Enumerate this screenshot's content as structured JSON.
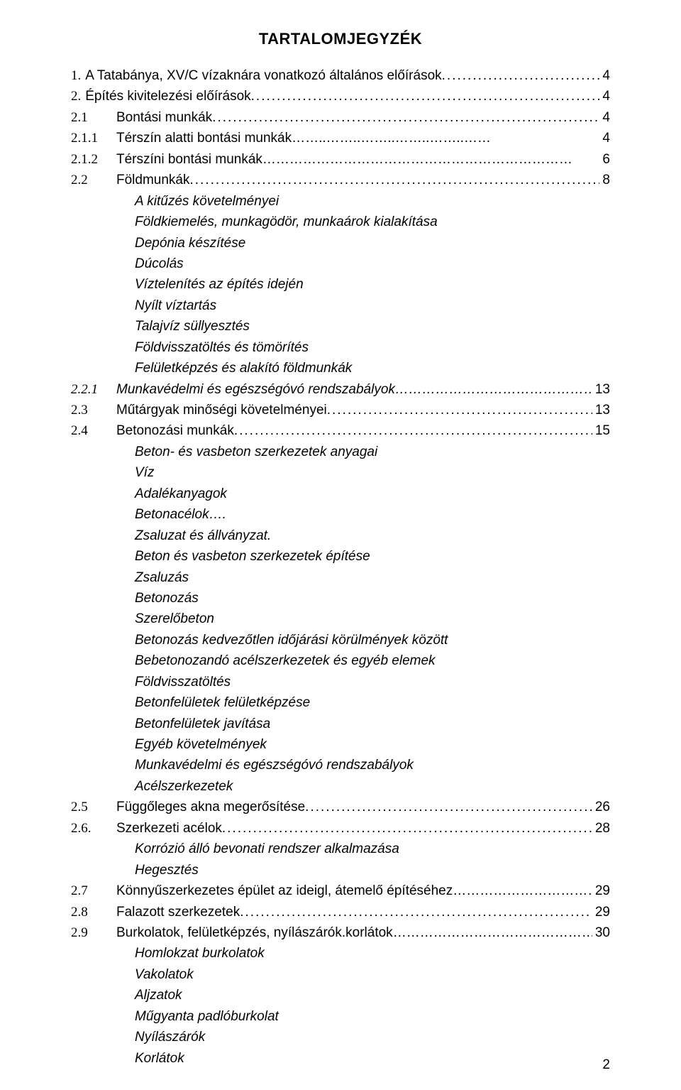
{
  "title": "TARTALOMJEGYZÉK",
  "page_number": "2",
  "dots_long": "...................................................................................................................",
  "dots_med": "……………………………………………………………",
  "dots_dash": "……..……..……..……..……..……",
  "entries": {
    "e1": {
      "num": "1.",
      "label": "A Tatabánya, XV/C vízaknára vonatkozó általános előírások",
      "page": "4"
    },
    "e2": {
      "num": "2.",
      "label": "Építés kivitelezési előírások",
      "page": "4"
    },
    "e21": {
      "num": "2.1",
      "label": "Bontási munkák",
      "page": "4"
    },
    "e211": {
      "num": "2.1.1",
      "label": "Térszín alatti bontási munkák",
      "page": "4"
    },
    "e212": {
      "num": "2.1.2",
      "label": "Térszíni bontási munkák",
      "page": "6"
    },
    "e22": {
      "num": "2.2",
      "label": "Földmunkák",
      "page": "8"
    },
    "e221": {
      "num": "2.2.1",
      "label": "Munkavédelmi és egészségóvó rendszabályok",
      "page": "13"
    },
    "e23": {
      "num": "2.3",
      "label": "Műtárgyak minőségi követelményei",
      "page": "13"
    },
    "e24": {
      "num": "2.4",
      "label": "Betonozási munkák",
      "page": "15"
    },
    "e25": {
      "num": "2.5",
      "label": "Függőleges akna megerősítése",
      "page": "26"
    },
    "e26": {
      "num": "2.6.",
      "label": "Szerkezeti acélok",
      "page": "28"
    },
    "e27": {
      "num": "2.7",
      "label": "Könnyűszerkezetes épület az ideigl, átemelő építéséhez",
      "page": "29"
    },
    "e28": {
      "num": "2.8",
      "label": "Falazott szerkezetek",
      "page": "29"
    },
    "e29": {
      "num": "2.9",
      "label": "Burkolatok, felületképzés, nyílászárók.korlátok",
      "page": "30"
    }
  },
  "subs": {
    "s22": [
      "A kitűzés követelményei",
      "Földkiemelés, munkagödör, munkaárok kialakítása",
      "Depónia készítése",
      "Dúcolás",
      "Víztelenítés az építés idején",
      "Nyílt víztartás",
      "Talajvíz süllyesztés",
      "Földvisszatöltés és tömörítés",
      "Felületképzés és alakító földmunkák"
    ],
    "s24": [
      "Beton- és vasbeton szerkezetek anyagai",
      "Víz",
      "Adalékanyagok",
      "Betonacélok….",
      "Zsaluzat és állványzat.",
      "Beton és vasbeton szerkezetek építése",
      "Zsaluzás",
      "Betonozás",
      "Szerelőbeton",
      "Betonozás kedvezőtlen időjárási körülmények között",
      "Bebetonozandó acélszerkezetek és egyéb elemek",
      "Földvisszatöltés",
      "Betonfelületek felületképzése",
      "Betonfelületek javítása",
      "Egyéb követelmények",
      "Munkavédelmi és egészségóvó rendszabályok",
      "Acélszerkezetek"
    ],
    "s26": [
      "Korrózió álló bevonati rendszer alkalmazása",
      "Hegesztés"
    ],
    "s29": [
      "Homlokzat burkolatok",
      "Vakolatok",
      "Aljzatok",
      "Műgyanta padlóburkolat",
      "Nyílászárók",
      "Korlátok"
    ]
  }
}
